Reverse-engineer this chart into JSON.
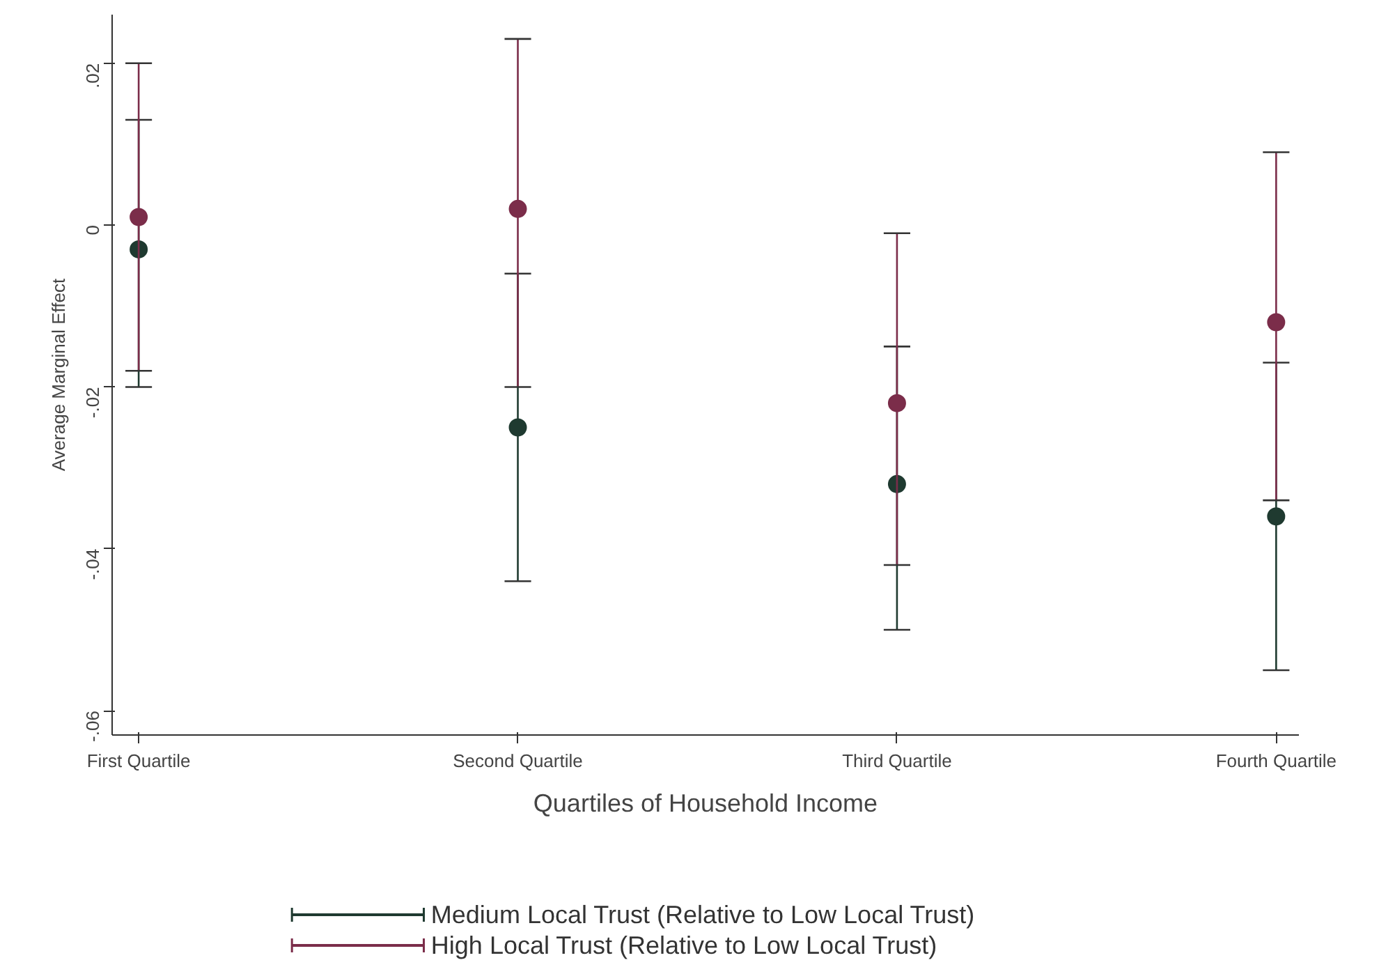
{
  "chart_data": {
    "type": "scatter",
    "xlabel": "Quartiles of Household Income",
    "ylabel": "Average Marginal Effect",
    "categories": [
      "First Quartile",
      "Second Quartile",
      "Third Quartile",
      "Fourth Quartile"
    ],
    "series": [
      {
        "name": "Medium Local Trust (Relative to Low Local Trust)",
        "color": "#1f3a30",
        "values": [
          -0.003,
          -0.025,
          -0.032,
          -0.036
        ],
        "errors": [
          [
            -0.02,
            0.013
          ],
          [
            -0.044,
            -0.006
          ],
          [
            -0.05,
            -0.015
          ],
          [
            -0.055,
            -0.017
          ]
        ]
      },
      {
        "name": "High Local Trust (Relative to Low Local Trust)",
        "color": "#7b2d4a",
        "values": [
          0.001,
          0.002,
          -0.022,
          -0.012
        ],
        "errors": [
          [
            -0.018,
            0.02
          ],
          [
            -0.02,
            0.023
          ],
          [
            -0.042,
            -0.001
          ],
          [
            -0.034,
            0.009
          ]
        ]
      }
    ],
    "ylim": [
      -0.063,
      0.026
    ],
    "yticks": [
      {
        "value": -0.06,
        "label": "-.06"
      },
      {
        "value": -0.04,
        "label": "-.04"
      },
      {
        "value": -0.02,
        "label": "-.02"
      },
      0,
      {
        "value": 0.02,
        "label": ".02"
      }
    ],
    "marker": "circle",
    "grid": false,
    "legend": "bottom"
  }
}
